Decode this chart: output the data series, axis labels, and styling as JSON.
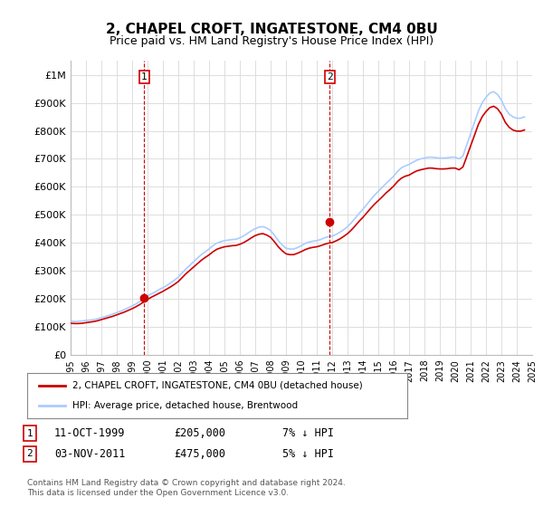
{
  "title": "2, CHAPEL CROFT, INGATESTONE, CM4 0BU",
  "subtitle": "Price paid vs. HM Land Registry's House Price Index (HPI)",
  "title_fontsize": 12,
  "subtitle_fontsize": 10,
  "background_color": "#ffffff",
  "plot_bg_color": "#ffffff",
  "grid_color": "#dddddd",
  "xlabel": "",
  "ylabel": "",
  "ylim": [
    0,
    1050000
  ],
  "yticks": [
    0,
    100000,
    200000,
    300000,
    400000,
    500000,
    600000,
    700000,
    800000,
    900000,
    1000000
  ],
  "ytick_labels": [
    "£0",
    "£100K",
    "£200K",
    "£300K",
    "£400K",
    "£500K",
    "£600K",
    "£700K",
    "£800K",
    "£900K",
    "£1M"
  ],
  "xmin_year": 1995,
  "xmax_year": 2025,
  "xtick_years": [
    1995,
    1996,
    1997,
    1998,
    1999,
    2000,
    2001,
    2002,
    2003,
    2004,
    2005,
    2006,
    2007,
    2008,
    2009,
    2010,
    2011,
    2012,
    2013,
    2014,
    2015,
    2016,
    2017,
    2018,
    2019,
    2020,
    2021,
    2022,
    2023,
    2024,
    2025
  ],
  "hpi_color": "#aaccff",
  "price_color": "#cc0000",
  "marker_color": "#cc0000",
  "sale1_year": 1999.79,
  "sale1_price": 205000,
  "sale1_label": "1",
  "sale2_year": 2011.84,
  "sale2_price": 475000,
  "sale2_label": "2",
  "vline_color": "#cc0000",
  "legend_line1": "2, CHAPEL CROFT, INGATESTONE, CM4 0BU (detached house)",
  "legend_line2": "HPI: Average price, detached house, Brentwood",
  "table_row1": [
    "1",
    "11-OCT-1999",
    "£205,000",
    "7% ↓ HPI"
  ],
  "table_row2": [
    "2",
    "03-NOV-2011",
    "£475,000",
    "5% ↓ HPI"
  ],
  "footer": "Contains HM Land Registry data © Crown copyright and database right 2024.\nThis data is licensed under the Open Government Licence v3.0.",
  "hpi_data_x": [
    1995.0,
    1995.25,
    1995.5,
    1995.75,
    1996.0,
    1996.25,
    1996.5,
    1996.75,
    1997.0,
    1997.25,
    1997.5,
    1997.75,
    1998.0,
    1998.25,
    1998.5,
    1998.75,
    1999.0,
    1999.25,
    1999.5,
    1999.75,
    2000.0,
    2000.25,
    2000.5,
    2000.75,
    2001.0,
    2001.25,
    2001.5,
    2001.75,
    2002.0,
    2002.25,
    2002.5,
    2002.75,
    2003.0,
    2003.25,
    2003.5,
    2003.75,
    2004.0,
    2004.25,
    2004.5,
    2004.75,
    2005.0,
    2005.25,
    2005.5,
    2005.75,
    2006.0,
    2006.25,
    2006.5,
    2006.75,
    2007.0,
    2007.25,
    2007.5,
    2007.75,
    2008.0,
    2008.25,
    2008.5,
    2008.75,
    2009.0,
    2009.25,
    2009.5,
    2009.75,
    2010.0,
    2010.25,
    2010.5,
    2010.75,
    2011.0,
    2011.25,
    2011.5,
    2011.75,
    2012.0,
    2012.25,
    2012.5,
    2012.75,
    2013.0,
    2013.25,
    2013.5,
    2013.75,
    2014.0,
    2014.25,
    2014.5,
    2014.75,
    2015.0,
    2015.25,
    2015.5,
    2015.75,
    2016.0,
    2016.25,
    2016.5,
    2016.75,
    2017.0,
    2017.25,
    2017.5,
    2017.75,
    2018.0,
    2018.25,
    2018.5,
    2018.75,
    2019.0,
    2019.25,
    2019.5,
    2019.75,
    2020.0,
    2020.25,
    2020.5,
    2020.75,
    2021.0,
    2021.25,
    2021.5,
    2021.75,
    2022.0,
    2022.25,
    2022.5,
    2022.75,
    2023.0,
    2023.25,
    2023.5,
    2023.75,
    2024.0,
    2024.25,
    2024.5
  ],
  "hpi_data_y": [
    121000,
    119000,
    120000,
    121000,
    123000,
    124000,
    126000,
    129000,
    133000,
    137000,
    141000,
    146000,
    151000,
    156000,
    162000,
    168000,
    175000,
    182000,
    191000,
    200000,
    210000,
    218000,
    225000,
    233000,
    240000,
    248000,
    257000,
    267000,
    278000,
    293000,
    307000,
    320000,
    333000,
    346000,
    358000,
    368000,
    378000,
    390000,
    399000,
    404000,
    408000,
    410000,
    412000,
    413000,
    418000,
    425000,
    434000,
    443000,
    451000,
    456000,
    458000,
    453000,
    444000,
    427000,
    408000,
    393000,
    381000,
    378000,
    378000,
    383000,
    390000,
    398000,
    403000,
    406000,
    408000,
    412000,
    418000,
    422000,
    424000,
    430000,
    438000,
    447000,
    458000,
    472000,
    488000,
    505000,
    520000,
    537000,
    554000,
    570000,
    584000,
    598000,
    612000,
    625000,
    638000,
    655000,
    668000,
    675000,
    680000,
    688000,
    695000,
    700000,
    703000,
    706000,
    706000,
    704000,
    703000,
    703000,
    704000,
    706000,
    706000,
    700000,
    710000,
    750000,
    790000,
    830000,
    870000,
    900000,
    920000,
    935000,
    940000,
    930000,
    910000,
    880000,
    860000,
    850000,
    845000,
    845000,
    850000
  ],
  "price_data_x": [
    1995.0,
    1995.25,
    1995.5,
    1995.75,
    1996.0,
    1996.25,
    1996.5,
    1996.75,
    1997.0,
    1997.25,
    1997.5,
    1997.75,
    1998.0,
    1998.25,
    1998.5,
    1998.75,
    1999.0,
    1999.25,
    1999.5,
    1999.75,
    2000.0,
    2000.25,
    2000.5,
    2000.75,
    2001.0,
    2001.25,
    2001.5,
    2001.75,
    2002.0,
    2002.25,
    2002.5,
    2002.75,
    2003.0,
    2003.25,
    2003.5,
    2003.75,
    2004.0,
    2004.25,
    2004.5,
    2004.75,
    2005.0,
    2005.25,
    2005.5,
    2005.75,
    2006.0,
    2006.25,
    2006.5,
    2006.75,
    2007.0,
    2007.25,
    2007.5,
    2007.75,
    2008.0,
    2008.25,
    2008.5,
    2008.75,
    2009.0,
    2009.25,
    2009.5,
    2009.75,
    2010.0,
    2010.25,
    2010.5,
    2010.75,
    2011.0,
    2011.25,
    2011.5,
    2011.75,
    2012.0,
    2012.25,
    2012.5,
    2012.75,
    2013.0,
    2013.25,
    2013.5,
    2013.75,
    2014.0,
    2014.25,
    2014.5,
    2014.75,
    2015.0,
    2015.25,
    2015.5,
    2015.75,
    2016.0,
    2016.25,
    2016.5,
    2016.75,
    2017.0,
    2017.25,
    2017.5,
    2017.75,
    2018.0,
    2018.25,
    2018.5,
    2018.75,
    2019.0,
    2019.25,
    2019.5,
    2019.75,
    2020.0,
    2020.25,
    2020.5,
    2020.75,
    2021.0,
    2021.25,
    2021.5,
    2021.75,
    2022.0,
    2022.25,
    2022.5,
    2022.75,
    2023.0,
    2023.25,
    2023.5,
    2023.75,
    2024.0,
    2024.25,
    2024.5
  ],
  "price_data_y": [
    113000,
    112000,
    112000,
    113000,
    115000,
    117000,
    119000,
    122000,
    126000,
    130000,
    134000,
    138000,
    143000,
    148000,
    153000,
    159000,
    165000,
    172000,
    180000,
    189000,
    198000,
    206000,
    213000,
    220000,
    227000,
    235000,
    243000,
    252000,
    262000,
    276000,
    290000,
    302000,
    314000,
    326000,
    338000,
    348000,
    357000,
    368000,
    377000,
    382000,
    386000,
    388000,
    390000,
    391000,
    395000,
    401000,
    409000,
    418000,
    426000,
    431000,
    433000,
    428000,
    420000,
    404000,
    386000,
    372000,
    361000,
    358000,
    358000,
    363000,
    369000,
    376000,
    381000,
    384000,
    386000,
    390000,
    395000,
    399000,
    401000,
    407000,
    414000,
    423000,
    433000,
    446000,
    461000,
    477000,
    491000,
    507000,
    523000,
    538000,
    551000,
    564000,
    578000,
    590000,
    603000,
    619000,
    631000,
    638000,
    642000,
    650000,
    657000,
    661000,
    664000,
    667000,
    667000,
    665000,
    664000,
    664000,
    665000,
    667000,
    667000,
    661000,
    671000,
    708000,
    746000,
    784000,
    822000,
    850000,
    869000,
    883000,
    888000,
    879000,
    860000,
    831000,
    813000,
    803000,
    799000,
    799000,
    803000
  ]
}
